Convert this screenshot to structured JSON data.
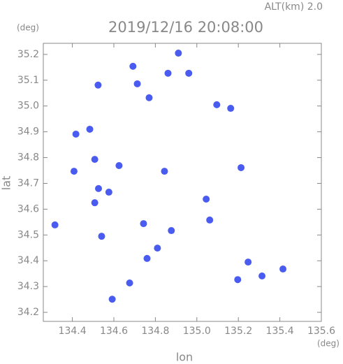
{
  "chart_data": {
    "type": "scatter",
    "annotation": "ALT(km) 2.0",
    "title": "2019/12/16 20:08:00",
    "y_unit": "(deg)",
    "x_unit": "(deg)",
    "y_label": "lat",
    "x_label": "lon",
    "color": "#4a5cf0",
    "xlim": [
      134.26,
      135.6
    ],
    "ylim": [
      34.165,
      35.243
    ],
    "xticks": [
      134.4,
      134.6,
      134.8,
      {
        "value": 135.0,
        "label": "135.0"
      },
      135.2,
      135.4,
      135.6
    ],
    "yticks": [
      34.2,
      34.3,
      34.4,
      34.5,
      34.6,
      34.7,
      34.8,
      34.9,
      {
        "value": 35.0,
        "label": "35.0"
      },
      35.1,
      35.2
    ],
    "x": [
      134.316,
      134.524,
      134.692,
      134.713,
      134.77,
      134.861,
      134.961,
      134.911,
      135.096,
      135.163,
      134.417,
      134.484,
      134.508,
      134.625,
      134.408,
      134.526,
      134.576,
      134.508,
      134.844,
      135.045,
      134.877,
      134.81,
      134.76,
      134.676,
      134.592,
      135.247,
      135.197,
      135.314,
      135.415,
      135.213,
      134.743,
      134.541,
      135.062
    ],
    "y": [
      34.539,
      35.081,
      35.154,
      35.086,
      35.032,
      35.127,
      35.127,
      35.205,
      35.005,
      34.991,
      34.891,
      34.91,
      34.793,
      34.769,
      34.747,
      34.68,
      34.666,
      34.625,
      34.747,
      34.639,
      34.517,
      34.449,
      34.409,
      34.314,
      34.251,
      34.395,
      34.327,
      34.341,
      34.368,
      34.761,
      34.544,
      34.495,
      34.558
    ]
  }
}
